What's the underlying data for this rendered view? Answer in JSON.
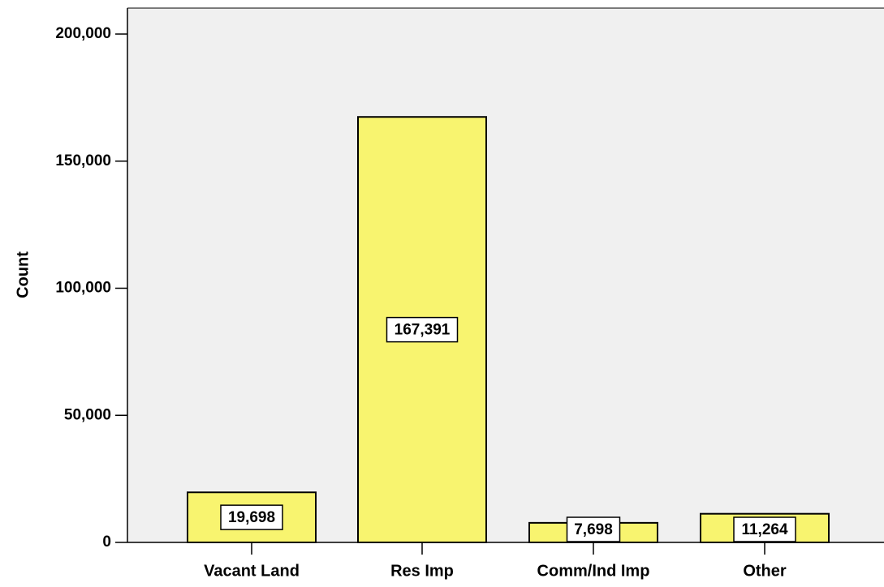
{
  "chart_data": {
    "type": "bar",
    "title": "",
    "xlabel": "",
    "ylabel": "Count",
    "categories": [
      "Vacant Land",
      "Res Imp",
      "Comm/Ind Imp",
      "Other"
    ],
    "values": [
      19698,
      167391,
      7698,
      11264
    ],
    "data_labels": [
      "19,698",
      "167,391",
      "7,698",
      "11,264"
    ],
    "ylim": [
      0,
      200000
    ],
    "yticks": [
      0,
      50000,
      100000,
      150000,
      200000
    ],
    "ytick_labels": [
      "0",
      "50,000",
      "100,000",
      "150,000",
      "200,000"
    ],
    "grid": false,
    "colors": {
      "bar_fill": "#f8f46f",
      "bar_stroke": "#000000",
      "plot_background": "#f0f0f0",
      "page_background": "#ffffff",
      "label_box_fill": "#ffffff"
    }
  }
}
